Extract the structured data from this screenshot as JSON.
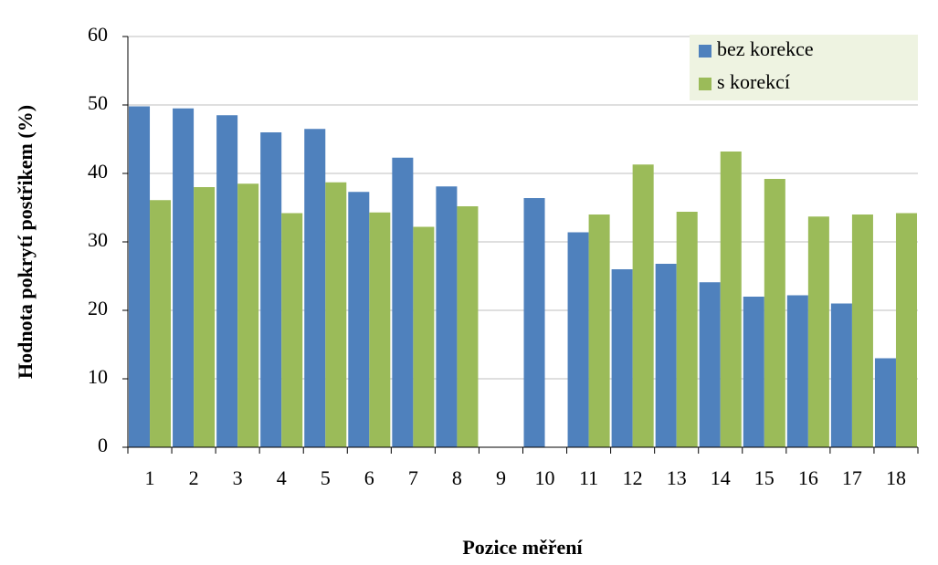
{
  "chart_data": {
    "type": "bar",
    "x_label": "Pozice měření",
    "y_label": "Hodnota pokrytí postřikem (%)",
    "categories": [
      "1",
      "2",
      "3",
      "4",
      "5",
      "6",
      "7",
      "8",
      "9",
      "10",
      "11",
      "12",
      "13",
      "14",
      "15",
      "16",
      "17",
      "18"
    ],
    "series": [
      {
        "name": "bez korekce",
        "color": "#4f81bd",
        "values": [
          49.8,
          49.5,
          48.5,
          46,
          46.5,
          37.3,
          42.3,
          38.1,
          null,
          36.4,
          31.4,
          26,
          26.8,
          24.1,
          22,
          22.2,
          21,
          13
        ]
      },
      {
        "name": "s korekcí",
        "color": "#9bbb59",
        "values": [
          36.1,
          38,
          38.5,
          34.2,
          38.7,
          34.3,
          32.2,
          35.2,
          null,
          null,
          34,
          41.3,
          34.4,
          43.2,
          39.2,
          33.7,
          34,
          34.2
        ]
      }
    ],
    "ylim": [
      0,
      60
    ],
    "yticks": [
      0,
      10,
      20,
      30,
      40,
      50,
      60
    ],
    "grid": true,
    "legend": "top-right"
  }
}
